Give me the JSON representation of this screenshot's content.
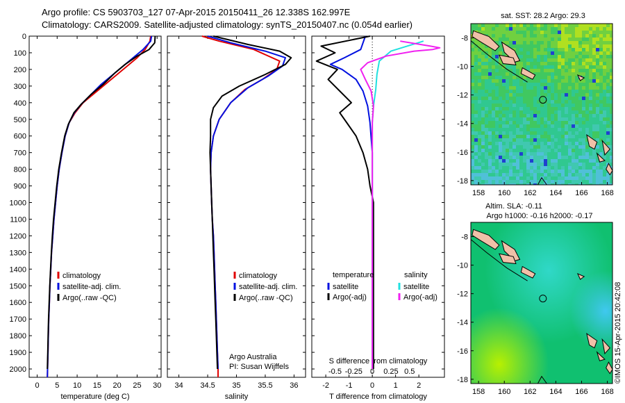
{
  "header": {
    "line1": "Argo profile: CS 5903703_127 07-Apr-2015 20150411_26 12.338S 162.997E",
    "line2": "Climatology: CARS2009. Satellite-adjusted climatology: synTS_20150407.nc (0.054d earlier)"
  },
  "colors": {
    "climatology": "#e00000",
    "satellite": "#0010e0",
    "argo": "#000000",
    "sat_salinity": "#20e0e0",
    "argo_adj_salinity": "#f020f0"
  },
  "chart_data": [
    {
      "type": "line",
      "name": "temperature",
      "xlabel": "temperature (deg C)",
      "ylabel": "",
      "xlim": [
        -2,
        31
      ],
      "ylim": [
        2050,
        0
      ],
      "xticks": [
        0,
        5,
        10,
        15,
        20,
        25,
        30
      ],
      "yticks": [
        0,
        100,
        200,
        300,
        400,
        500,
        600,
        700,
        800,
        900,
        1000,
        1100,
        1200,
        1300,
        1400,
        1500,
        1600,
        1700,
        1800,
        1900,
        2000
      ],
      "legend": [
        "climatology",
        "satellite-adj. clim.",
        "Argo(..raw -QC)"
      ],
      "series": [
        {
          "name": "climatology",
          "color": "#e00000",
          "points": [
            [
              28.4,
              0
            ],
            [
              28.2,
              30
            ],
            [
              27,
              80
            ],
            [
              25,
              130
            ],
            [
              22.5,
              180
            ],
            [
              20,
              230
            ],
            [
              17,
              290
            ],
            [
              14,
              350
            ],
            [
              11.5,
              400
            ],
            [
              9.5,
              460
            ],
            [
              8,
              520
            ],
            [
              7,
              600
            ],
            [
              6.2,
              700
            ],
            [
              5.5,
              800
            ],
            [
              5,
              900
            ],
            [
              4.6,
              1000
            ],
            [
              4.2,
              1100
            ],
            [
              3.9,
              1200
            ],
            [
              3.6,
              1300
            ],
            [
              3.4,
              1400
            ],
            [
              3.2,
              1500
            ],
            [
              3.05,
              1600
            ],
            [
              2.9,
              1700
            ],
            [
              2.8,
              1800
            ],
            [
              2.7,
              1900
            ],
            [
              2.6,
              2000
            ],
            [
              2.55,
              2050
            ]
          ]
        },
        {
          "name": "satellite-adj. clim.",
          "color": "#0010e0",
          "points": [
            [
              28.6,
              0
            ],
            [
              28.4,
              30
            ],
            [
              26.5,
              80
            ],
            [
              24,
              130
            ],
            [
              21.5,
              180
            ],
            [
              19,
              230
            ],
            [
              16,
              290
            ],
            [
              13.5,
              350
            ],
            [
              11,
              410
            ],
            [
              9.3,
              460
            ],
            [
              8,
              520
            ],
            [
              7,
              600
            ],
            [
              6.2,
              700
            ],
            [
              5.5,
              800
            ],
            [
              5,
              900
            ],
            [
              4.6,
              1000
            ],
            [
              4.2,
              1100
            ],
            [
              3.9,
              1200
            ],
            [
              3.6,
              1300
            ],
            [
              3.4,
              1400
            ],
            [
              3.2,
              1500
            ],
            [
              3.05,
              1600
            ],
            [
              2.9,
              1700
            ],
            [
              2.8,
              1800
            ],
            [
              2.7,
              1900
            ],
            [
              2.6,
              2000
            ],
            [
              2.55,
              2050
            ]
          ]
        },
        {
          "name": "Argo(..raw -QC)",
          "color": "#000000",
          "points": [
            [
              29.5,
              0
            ],
            [
              29.4,
              40
            ],
            [
              28,
              80
            ],
            [
              25,
              120
            ],
            [
              22,
              170
            ],
            [
              19.5,
              220
            ],
            [
              16.5,
              290
            ],
            [
              13.5,
              350
            ],
            [
              11,
              410
            ],
            [
              9.2,
              460
            ],
            [
              7.8,
              530
            ],
            [
              6.9,
              600
            ],
            [
              6.1,
              700
            ],
            [
              5.4,
              800
            ],
            [
              4.9,
              900
            ],
            [
              4.5,
              1000
            ],
            [
              4.1,
              1100
            ],
            [
              3.8,
              1200
            ],
            [
              3.55,
              1300
            ],
            [
              3.35,
              1400
            ],
            [
              3.15,
              1500
            ],
            [
              3.0,
              1600
            ],
            [
              2.85,
              1700
            ],
            [
              2.75,
              1800
            ],
            [
              2.65,
              1900
            ],
            [
              2.55,
              2000
            ]
          ]
        }
      ]
    },
    {
      "type": "line",
      "name": "salinity",
      "xlabel": "salinity",
      "ylabel": "",
      "xlim": [
        33.8,
        36.2
      ],
      "ylim": [
        2050,
        0
      ],
      "xticks": [
        34,
        34.5,
        35,
        35.5,
        36
      ],
      "yticks": [
        0,
        100,
        200,
        300,
        400,
        500,
        600,
        700,
        800,
        900,
        1000,
        1100,
        1200,
        1300,
        1400,
        1500,
        1600,
        1700,
        1800,
        1900,
        2000
      ],
      "legend": [
        "climatology",
        "satellite-adj. clim.",
        "Argo(..raw -QC)"
      ],
      "annotation": [
        "Argo Australia",
        "PI: Susan Wijffels"
      ],
      "series": [
        {
          "name": "climatology",
          "color": "#e00000",
          "points": [
            [
              34.4,
              0
            ],
            [
              34.7,
              30
            ],
            [
              35.3,
              80
            ],
            [
              35.75,
              150
            ],
            [
              35.7,
              200
            ],
            [
              35.45,
              260
            ],
            [
              35.15,
              320
            ],
            [
              34.9,
              400
            ],
            [
              34.7,
              500
            ],
            [
              34.6,
              600
            ],
            [
              34.56,
              700
            ],
            [
              34.55,
              800
            ],
            [
              34.56,
              900
            ],
            [
              34.57,
              1000
            ],
            [
              34.58,
              1100
            ],
            [
              34.6,
              1200
            ],
            [
              34.61,
              1300
            ],
            [
              34.62,
              1400
            ],
            [
              34.63,
              1500
            ],
            [
              34.64,
              1600
            ],
            [
              34.65,
              1700
            ],
            [
              34.66,
              1800
            ],
            [
              34.67,
              1900
            ],
            [
              34.68,
              2000
            ],
            [
              34.68,
              2050
            ]
          ]
        },
        {
          "name": "satellite-adj. clim.",
          "color": "#0010e0",
          "points": [
            [
              34.5,
              0
            ],
            [
              34.9,
              40
            ],
            [
              35.5,
              90
            ],
            [
              35.85,
              130
            ],
            [
              35.8,
              180
            ],
            [
              35.55,
              240
            ],
            [
              35.2,
              310
            ],
            [
              34.9,
              400
            ],
            [
              34.7,
              500
            ],
            [
              34.6,
              600
            ],
            [
              34.56,
              700
            ],
            [
              34.55,
              800
            ],
            [
              34.56,
              900
            ],
            [
              34.57,
              1000
            ],
            [
              34.58,
              1100
            ],
            [
              34.6,
              1200
            ],
            [
              34.61,
              1300
            ],
            [
              34.62,
              1400
            ],
            [
              34.63,
              1500
            ],
            [
              34.64,
              1600
            ],
            [
              34.65,
              1700
            ],
            [
              34.66,
              1800
            ],
            [
              34.67,
              1900
            ],
            [
              34.68,
              2000
            ]
          ]
        },
        {
          "name": "Argo(..raw -QC)",
          "color": "#000000",
          "points": [
            [
              34.6,
              0
            ],
            [
              35.2,
              50
            ],
            [
              35.75,
              90
            ],
            [
              35.95,
              130
            ],
            [
              35.85,
              170
            ],
            [
              35.5,
              230
            ],
            [
              35.05,
              300
            ],
            [
              34.75,
              360
            ],
            [
              34.6,
              430
            ],
            [
              34.55,
              500
            ],
            [
              34.55,
              600
            ],
            [
              34.54,
              700
            ],
            [
              34.55,
              800
            ],
            [
              34.56,
              900
            ],
            [
              34.57,
              1000
            ],
            [
              34.58,
              1100
            ],
            [
              34.59,
              1200
            ],
            [
              34.6,
              1300
            ],
            [
              34.61,
              1400
            ],
            [
              34.62,
              1500
            ],
            [
              34.63,
              1600
            ],
            [
              34.64,
              1700
            ],
            [
              34.65,
              1800
            ],
            [
              34.66,
              1900
            ],
            [
              34.67,
              2000
            ]
          ]
        }
      ]
    },
    {
      "type": "line",
      "name": "difference",
      "xlabel": "T difference from climatology",
      "xlabel_top": "S difference from climatology",
      "xlim": [
        -2.6,
        3.1
      ],
      "ylim": [
        2050,
        0
      ],
      "xticks": [
        -2,
        -1,
        0,
        1,
        2
      ],
      "xticks_s": [
        {
          "x": -1.6,
          "label": "-0.5"
        },
        {
          "x": -0.8,
          "label": "-0.25"
        },
        {
          "x": 0,
          "label": "0"
        },
        {
          "x": 0.8,
          "label": "0.25"
        },
        {
          "x": 1.6,
          "label": "0.5"
        }
      ],
      "yticks": [
        0,
        100,
        200,
        300,
        400,
        500,
        600,
        700,
        800,
        900,
        1000,
        1100,
        1200,
        1300,
        1400,
        1500,
        1600,
        1700,
        1800,
        1900,
        2000
      ],
      "legend_left": {
        "title": "temperature",
        "items": [
          "satellite",
          "Argo(-adj)"
        ]
      },
      "legend_right": {
        "title": "salinity",
        "items": [
          "satellite",
          "Argo(-adj)"
        ]
      },
      "series": [
        {
          "name": "satellite",
          "color": "#0010e0",
          "points": [
            [
              -0.3,
              0
            ],
            [
              -0.5,
              80
            ],
            [
              -1.2,
              130
            ],
            [
              -1.8,
              170
            ],
            [
              -1.3,
              200
            ],
            [
              -0.7,
              260
            ],
            [
              -0.4,
              330
            ],
            [
              -0.2,
              420
            ],
            [
              -0.1,
              520
            ],
            [
              0,
              700
            ],
            [
              0,
              1000
            ],
            [
              0,
              1500
            ],
            [
              0,
              2000
            ]
          ]
        },
        {
          "name": "Argo(-adj)",
          "color": "#000000",
          "points": [
            [
              -0.1,
              0
            ],
            [
              -2.2,
              60
            ],
            [
              -1.6,
              100
            ],
            [
              -2.4,
              150
            ],
            [
              -1.5,
              200
            ],
            [
              -1.9,
              260
            ],
            [
              -1.4,
              330
            ],
            [
              -0.9,
              400
            ],
            [
              -1.4,
              460
            ],
            [
              -1.1,
              520
            ],
            [
              -0.7,
              600
            ],
            [
              -0.4,
              700
            ],
            [
              -0.2,
              800
            ],
            [
              -0.1,
              900
            ],
            [
              0.05,
              1000
            ],
            [
              0.05,
              1200
            ],
            [
              0.05,
              1500
            ],
            [
              0.05,
              1800
            ],
            [
              0.05,
              2000
            ]
          ]
        },
        {
          "name": "satellite",
          "color": "#20e0e0",
          "points": [
            [
              2.2,
              30
            ],
            [
              0.8,
              90
            ],
            [
              0.3,
              150
            ],
            [
              0.2,
              230
            ],
            [
              0.15,
              320
            ],
            [
              0.05,
              420
            ],
            [
              0,
              520
            ],
            [
              0,
              700
            ],
            [
              0,
              1000
            ],
            [
              0,
              1500
            ],
            [
              0,
              2000
            ]
          ]
        },
        {
          "name": "Argo(-adj)",
          "color": "#f020f0",
          "points": [
            [
              1.2,
              30
            ],
            [
              2.5,
              60
            ],
            [
              2.9,
              70
            ],
            [
              2.6,
              80
            ],
            [
              1.8,
              90
            ],
            [
              0.6,
              120
            ],
            [
              -0.2,
              160
            ],
            [
              -0.5,
              200
            ],
            [
              -0.3,
              260
            ],
            [
              -0.05,
              330
            ],
            [
              0.05,
              420
            ],
            [
              0,
              520
            ],
            [
              0,
              700
            ],
            [
              0,
              1000
            ],
            [
              0,
              1500
            ],
            [
              0,
              2000
            ]
          ]
        }
      ]
    },
    {
      "type": "heatmap",
      "name": "sst-map",
      "title": "sat. SST: 28.2 Argo: 29.3",
      "xlim": [
        157.4,
        168.4
      ],
      "ylim": [
        -18.3,
        -7
      ],
      "xticks": [
        158,
        160,
        162,
        164,
        166,
        168
      ],
      "yticks": [
        -8,
        -10,
        -12,
        -14,
        -16,
        -18
      ],
      "marker": [
        162.997,
        -12.338
      ]
    },
    {
      "type": "heatmap",
      "name": "sla-map",
      "title": "Altim. SLA: -0.11",
      "subtitle": "Argo h1000: -0.16 h2000: -0.17",
      "xlim": [
        157.4,
        168.4
      ],
      "ylim": [
        -18.3,
        -7
      ],
      "xticks": [
        158,
        160,
        162,
        164,
        166,
        168
      ],
      "yticks": [
        -8,
        -10,
        -12,
        -14,
        -16,
        -18
      ],
      "marker": [
        162.997,
        -12.338
      ]
    }
  ],
  "footer": {
    "credit": "©IMOS 15-Apr-2015 20:42:08"
  }
}
